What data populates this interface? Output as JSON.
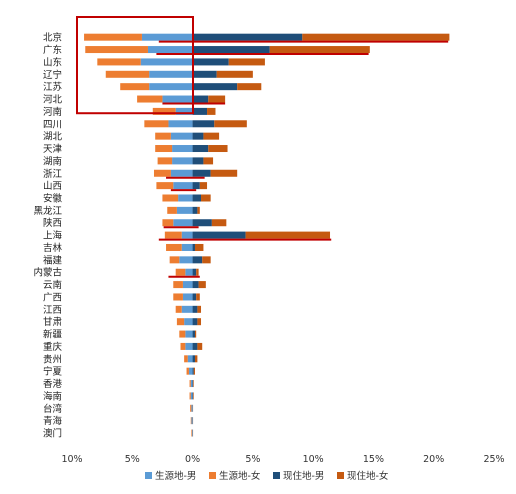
{
  "chart_data": {
    "type": "bar",
    "orientation": "horizontal-diverging",
    "categories": [
      "北京",
      "广东",
      "山东",
      "辽宁",
      "江苏",
      "河北",
      "河南",
      "四川",
      "湖北",
      "天津",
      "湖南",
      "浙江",
      "山西",
      "安徽",
      "黑龙江",
      "陕西",
      "上海",
      "吉林",
      "福建",
      "内蒙古",
      "云南",
      "广西",
      "江西",
      "甘肃",
      "新疆",
      "重庆",
      "贵州",
      "宁夏",
      "香港",
      "海南",
      "台湾",
      "青海",
      "澳门"
    ],
    "x_ticks": [
      "10%",
      "5%",
      "0%",
      "5%",
      "10%",
      "15%",
      "20%",
      "25%"
    ],
    "xlim": [
      -10,
      25
    ],
    "series": [
      {
        "name": "生源地-男",
        "color": "#5b9bd5",
        "side": "left",
        "values": [
          4.2,
          3.7,
          4.3,
          3.6,
          3.6,
          2.5,
          1.4,
          2.0,
          1.8,
          1.7,
          1.7,
          1.8,
          1.6,
          1.2,
          1.3,
          1.6,
          0.9,
          0.9,
          1.1,
          0.6,
          0.8,
          0.8,
          0.9,
          0.7,
          0.6,
          0.6,
          0.4,
          0.3,
          0.15,
          0.15,
          0.1,
          0.1,
          0.05
        ]
      },
      {
        "name": "生源地-女",
        "color": "#ed7d31",
        "side": "left",
        "values": [
          4.8,
          5.2,
          3.6,
          3.6,
          2.4,
          2.1,
          1.9,
          2.0,
          1.3,
          1.4,
          1.2,
          1.4,
          1.4,
          1.3,
          0.8,
          0.9,
          1.4,
          1.3,
          0.8,
          0.8,
          0.8,
          0.8,
          0.5,
          0.6,
          0.5,
          0.4,
          0.3,
          0.2,
          0.1,
          0.1,
          0.1,
          0.05,
          0.05
        ]
      },
      {
        "name": "现住地-男",
        "color": "#1f4e79",
        "side": "right",
        "values": [
          9.1,
          6.4,
          3.0,
          2.0,
          3.7,
          1.3,
          1.2,
          1.8,
          0.9,
          1.3,
          0.9,
          1.5,
          0.6,
          0.7,
          0.4,
          1.6,
          4.4,
          0.2,
          0.8,
          0.3,
          0.5,
          0.3,
          0.4,
          0.4,
          0.2,
          0.4,
          0.2,
          0.1,
          0.05,
          0.05,
          0.02,
          0.02,
          0.02
        ]
      },
      {
        "name": "现住地-女",
        "color": "#c55a11",
        "side": "right",
        "values": [
          12.2,
          8.3,
          3.0,
          3.0,
          2.0,
          1.4,
          0.7,
          2.7,
          1.3,
          1.6,
          0.8,
          2.2,
          0.6,
          0.8,
          0.2,
          1.2,
          7.0,
          0.7,
          0.7,
          0.2,
          0.6,
          0.3,
          0.3,
          0.3,
          0.1,
          0.4,
          0.2,
          0.1,
          0.05,
          0.05,
          0.02,
          0.02,
          0.02
        ]
      }
    ],
    "legend": {
      "placement": "bottom"
    },
    "grid": false,
    "annotations": {
      "highlight_box_color": "#c00000",
      "highlight_box_categories": [
        "北京",
        "河北"
      ],
      "underline_color": "#c00000",
      "underlines": [
        {
          "category": "北京",
          "from": -2.8,
          "to": 21.2
        },
        {
          "category": "广东",
          "from": -3.0,
          "to": 14.6
        },
        {
          "category": "河北",
          "from": -2.5,
          "to": 2.7
        },
        {
          "category": "浙江",
          "from": -2.2,
          "to": 1.0
        },
        {
          "category": "陕西",
          "from": -2.4,
          "to": 0.5
        },
        {
          "category": "上海",
          "from": -2.8,
          "to": 11.5
        },
        {
          "category": "内蒙古",
          "from": -2.0,
          "to": 0.6
        },
        {
          "category": "山西",
          "from": -1.8,
          "to": 0.3
        }
      ]
    }
  }
}
